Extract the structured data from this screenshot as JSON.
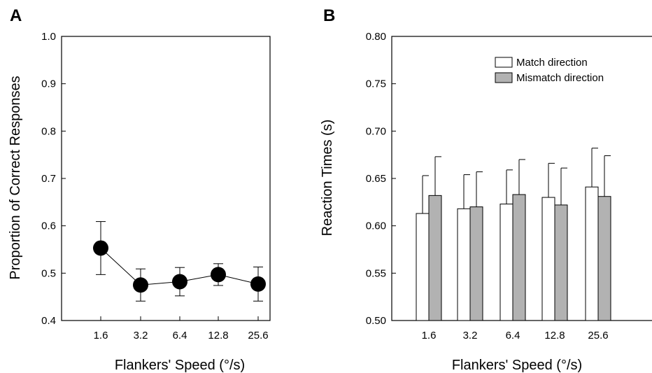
{
  "chart_data": [
    {
      "panel": "A",
      "type": "line",
      "title": "",
      "xlabel": "Flankers' Speed (°/s)",
      "ylabel": "Proportion of Correct Responses",
      "categories": [
        "1.6",
        "3.2",
        "6.4",
        "12.8",
        "25.6"
      ],
      "ylim": [
        0.4,
        1.0
      ],
      "yticks": [
        "0.4",
        "0.5",
        "0.6",
        "0.7",
        "0.8",
        "0.9",
        "1.0"
      ],
      "grid": false,
      "series": [
        {
          "values": [
            0.553,
            0.475,
            0.482,
            0.497,
            0.477
          ],
          "error": [
            0.056,
            0.034,
            0.03,
            0.023,
            0.036
          ]
        }
      ]
    },
    {
      "panel": "B",
      "type": "bar",
      "title": "",
      "xlabel": "Flankers' Speed (°/s)",
      "ylabel": "Reaction Times (s)",
      "categories": [
        "1.6",
        "3.2",
        "6.4",
        "12.8",
        "25.6"
      ],
      "ylim": [
        0.5,
        0.8
      ],
      "yticks": [
        "0.50",
        "0.55",
        "0.60",
        "0.65",
        "0.70",
        "0.75",
        "0.80"
      ],
      "grid": false,
      "legend_position": "top-right",
      "series": [
        {
          "name": "Match direction",
          "color": "#ffffff",
          "values": [
            0.613,
            0.618,
            0.623,
            0.63,
            0.641
          ],
          "error": [
            0.04,
            0.036,
            0.036,
            0.036,
            0.041
          ]
        },
        {
          "name": "Mismatch direction",
          "color": "#b2b2b2",
          "values": [
            0.632,
            0.62,
            0.633,
            0.622,
            0.631
          ],
          "error": [
            0.041,
            0.037,
            0.037,
            0.039,
            0.043
          ]
        }
      ]
    }
  ]
}
